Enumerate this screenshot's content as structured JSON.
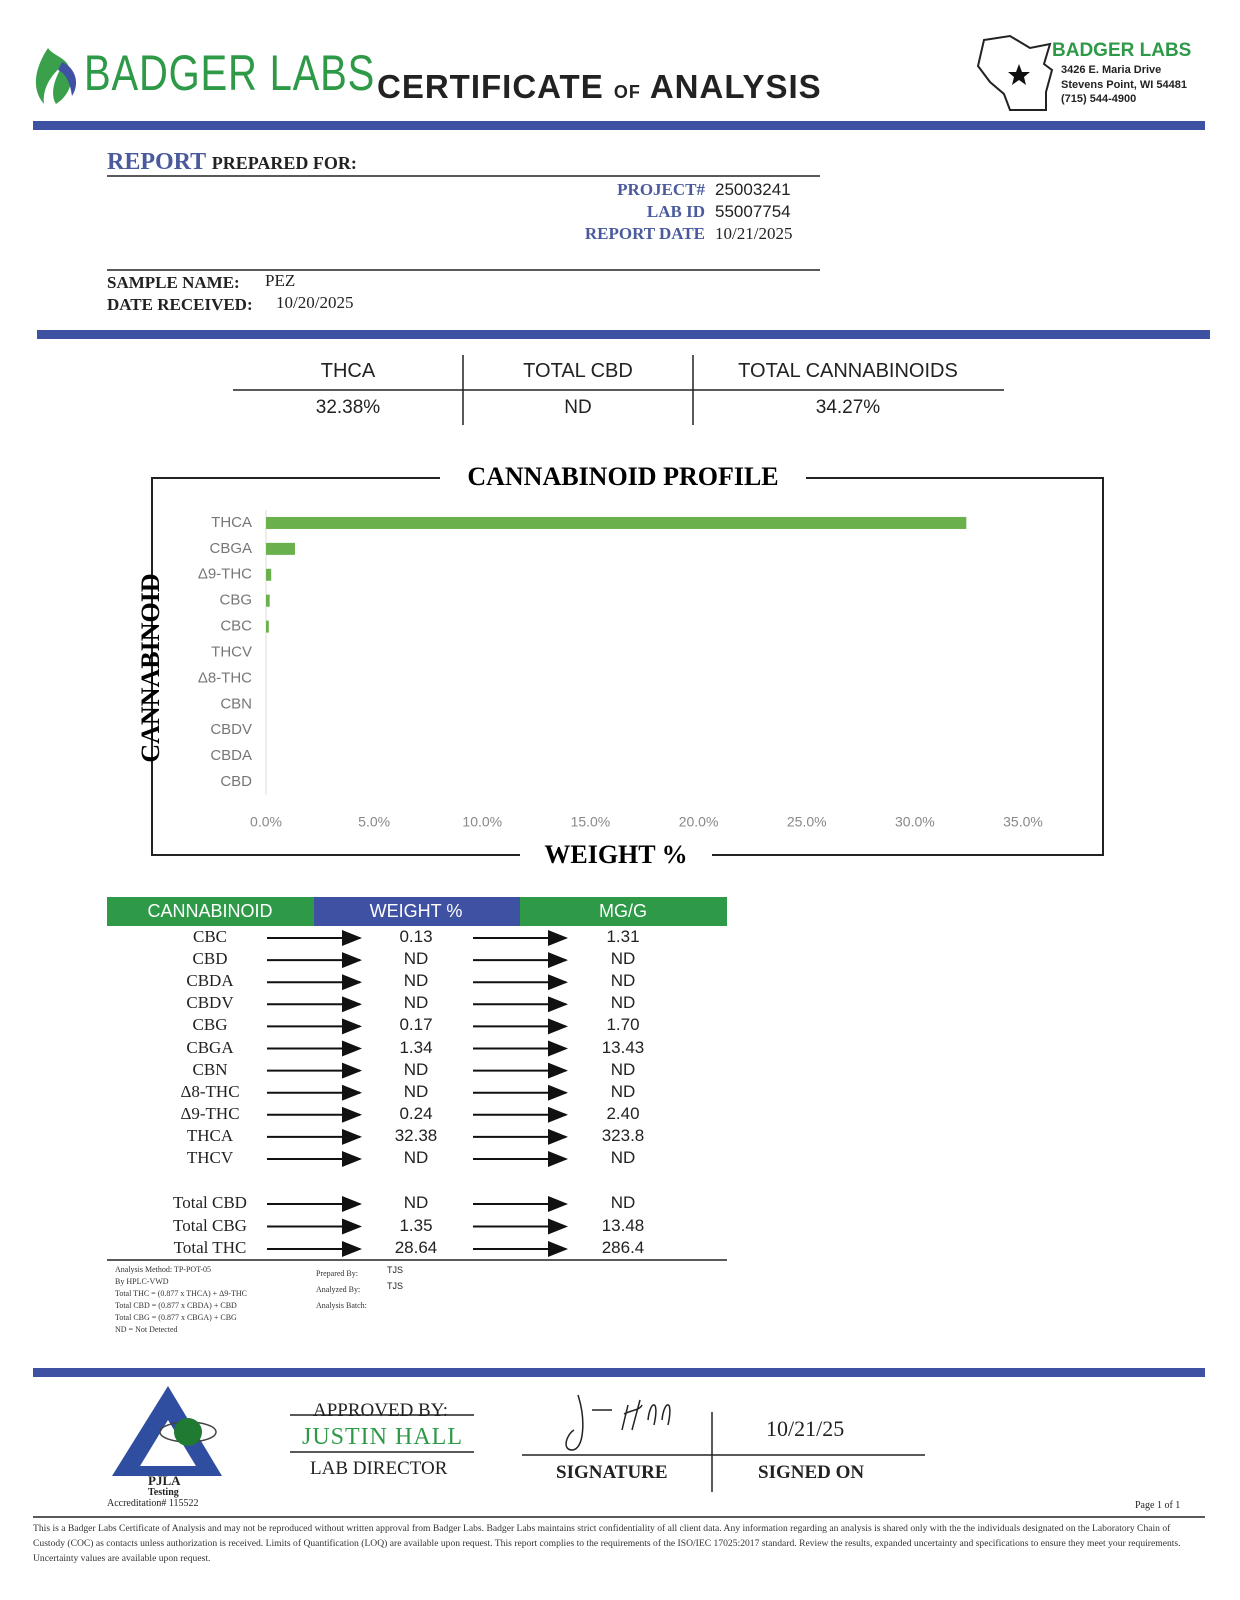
{
  "header": {
    "logo": "BADGER LABS",
    "title_1": "CERTIFICATE",
    "title_2": "of",
    "title_3": "ANALYSIS",
    "lab_name": "BADGER LABS",
    "address": [
      "3426 E. Maria Drive",
      "Stevens Point, WI 54481",
      "(715) 544-4900"
    ]
  },
  "report": {
    "label_1": "REPORT",
    "label_2": "PREPARED FOR:",
    "project_label": "PROJECT#",
    "project": "25003241",
    "lab_id_label": "LAB ID",
    "lab_id": "55007754",
    "report_date_label": "REPORT DATE",
    "report_date": "10/21/2025",
    "sample_name_label": "SAMPLE NAME:",
    "sample_name": "PEZ",
    "date_received_label": "DATE RECEIVED:",
    "date_received": "10/20/2025"
  },
  "summary": {
    "headers": [
      "THCA",
      "TOTAL CBD",
      "TOTAL CANNABINOIDS"
    ],
    "values": [
      "32.38%",
      "ND",
      "34.27%"
    ]
  },
  "chart_data": {
    "type": "bar",
    "orientation": "horizontal",
    "title": "CANNABINOID PROFILE",
    "x_label": "WEIGHT %",
    "y_label": "CANNABINOID",
    "categories": [
      "THCA",
      "CBGA",
      "Δ9-THC",
      "CBG",
      "CBC",
      "THCV",
      "Δ8-THC",
      "CBN",
      "CBDV",
      "CBDA",
      "CBD"
    ],
    "values": [
      32.38,
      1.34,
      0.24,
      0.17,
      0.13,
      null,
      null,
      null,
      null,
      null,
      null
    ],
    "color": "#6ab04c",
    "xlim": [
      0,
      35
    ],
    "xticks": [
      {
        "value": 0,
        "label": "0.0%"
      },
      {
        "value": 5,
        "label": "5.0%"
      },
      {
        "value": 10,
        "label": "10.0%"
      },
      {
        "value": 15,
        "label": "15.0%"
      },
      {
        "value": 20,
        "label": "20.0%"
      },
      {
        "value": 25,
        "label": "25.0%"
      },
      {
        "value": 30,
        "label": "30.0%"
      },
      {
        "value": 35,
        "label": "35.0%"
      }
    ]
  },
  "table": {
    "headers": [
      "CANNABINOID",
      "WEIGHT %",
      "MG/G"
    ],
    "rows": [
      [
        "CBC",
        "0.13",
        "1.31"
      ],
      [
        "CBD",
        "ND",
        "ND"
      ],
      [
        "CBDA",
        "ND",
        "ND"
      ],
      [
        "CBDV",
        "ND",
        "ND"
      ],
      [
        "CBG",
        "0.17",
        "1.70"
      ],
      [
        "CBGA",
        "1.34",
        "13.43"
      ],
      [
        "CBN",
        "ND",
        "ND"
      ],
      [
        "Δ8-THC",
        "ND",
        "ND"
      ],
      [
        "Δ9-THC",
        "0.24",
        "2.40"
      ],
      [
        "THCA",
        "32.38",
        "323.8"
      ],
      [
        "THCV",
        "ND",
        "ND"
      ]
    ],
    "totals": [
      [
        "Total CBD",
        "ND",
        "ND"
      ],
      [
        "Total CBG",
        "1.35",
        "13.48"
      ],
      [
        "Total THC",
        "28.64",
        "286.4"
      ]
    ]
  },
  "notes": {
    "method": [
      "Analysis Method: TP-POT-05",
      "By HPLC-VWD",
      "Total THC = (0.877 x THCA) + Δ9-THC",
      "Total CBD = (0.877 x CBDA) + CBD",
      "Total CBG = (0.877 x CBGA) + CBG",
      "ND = Not Detected"
    ],
    "prepared_by_label": "Prepared By:",
    "prepared_by": "TJS",
    "analyzed_by_label": "Analyzed By:",
    "analyzed_by": "TJS",
    "batch_label": "Analysis Batch:"
  },
  "footer": {
    "pjla": "PJLA",
    "pjla_sub": "Testing",
    "accreditation": "Accreditation# 115522",
    "approved_label": "APPROVED BY:",
    "approver": "JUSTIN HALL",
    "approver_role": "LAB DIRECTOR",
    "signature_label": "SIGNATURE",
    "signed_on": "10/21/25",
    "signed_on_label": "SIGNED ON",
    "page": "Page 1 of 1",
    "disclaimer": "This is a Badger Labs Certificate of Analysis and may not be reproduced without written approval from Badger Labs. Badger Labs maintains strict confidentiality of all client data. Any information regarding an analysis is shared only with the the individuals designated on the Laboratory Chain of Custody (COC) as contacts unless authorization is received. Limits of Quantification (LOQ) are available upon request. This report complies to the requirements of the ISO/IEC 17025:2017 standard. Review the results, expanded uncertainty and specifications to ensure they meet your requirements. Uncertainty values are available upon request."
  }
}
